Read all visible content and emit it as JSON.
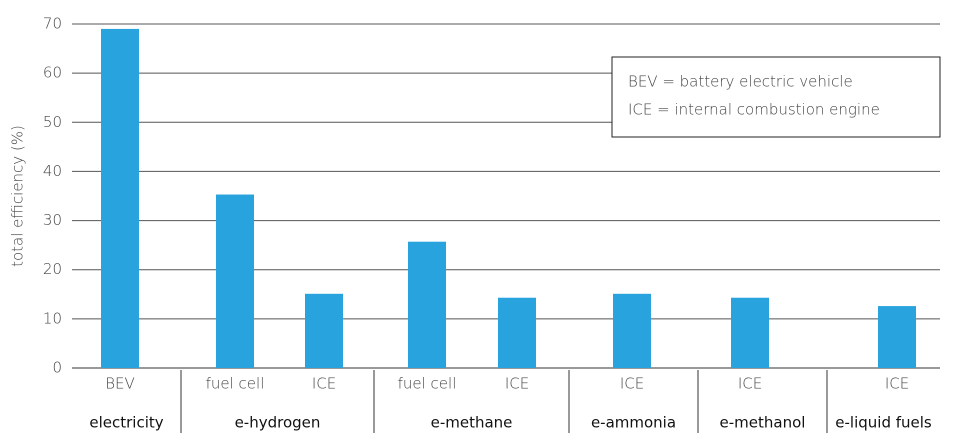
{
  "chart_data": {
    "type": "bar",
    "y_label": "total efficiency (%)",
    "annotations": [
      "BEV = battery electric vehicle",
      "ICE = internal combustion engine"
    ],
    "color": "#29a3dd",
    "groups": [
      {
        "name": "electricity",
        "categories": [
          "BEV"
        ],
        "values": [
          69
        ]
      },
      {
        "name": "e-hydrogen",
        "categories": [
          "fuel cell",
          "ICE"
        ],
        "values": [
          35.3,
          15.1
        ]
      },
      {
        "name": "e-methane",
        "categories": [
          "fuel cell",
          "ICE"
        ],
        "values": [
          25.7,
          14.3
        ]
      },
      {
        "name": "e-ammonia",
        "categories": [
          "ICE"
        ],
        "values": [
          15.1
        ]
      },
      {
        "name": "e-methanol",
        "categories": [
          "ICE"
        ],
        "values": [
          14.3
        ]
      },
      {
        "name": "e-liquid fuels",
        "categories": [
          "ICE"
        ],
        "values": [
          12.6
        ]
      }
    ],
    "ylim": [
      0,
      70
    ],
    "yticks": [
      0,
      10,
      20,
      30,
      40,
      50,
      60,
      70
    ],
    "grid": true
  }
}
